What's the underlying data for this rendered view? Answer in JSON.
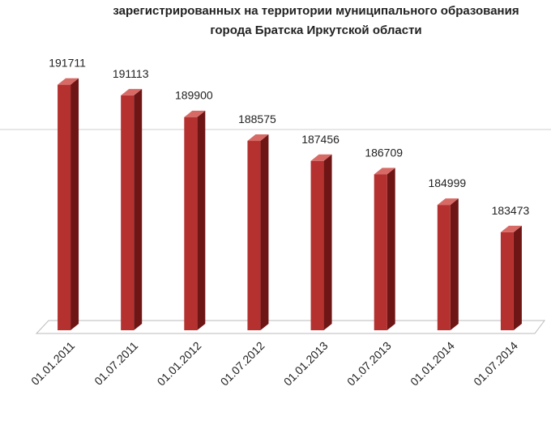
{
  "chart_data": {
    "type": "bar3d",
    "title": [
      "зарегистрированных на территории муниципального образования",
      "города Братска Иркутской области"
    ],
    "categories": [
      "01.01.2011",
      "01.07.2011",
      "01.01.2012",
      "01.07.2012",
      "01.01.2013",
      "01.07.2013",
      "01.01.2014",
      "01.07.2014"
    ],
    "values": [
      191711,
      191113,
      189900,
      188575,
      187456,
      186709,
      184999,
      183473
    ],
    "color": "#b5312f",
    "ylim": [
      178000,
      194000
    ]
  }
}
